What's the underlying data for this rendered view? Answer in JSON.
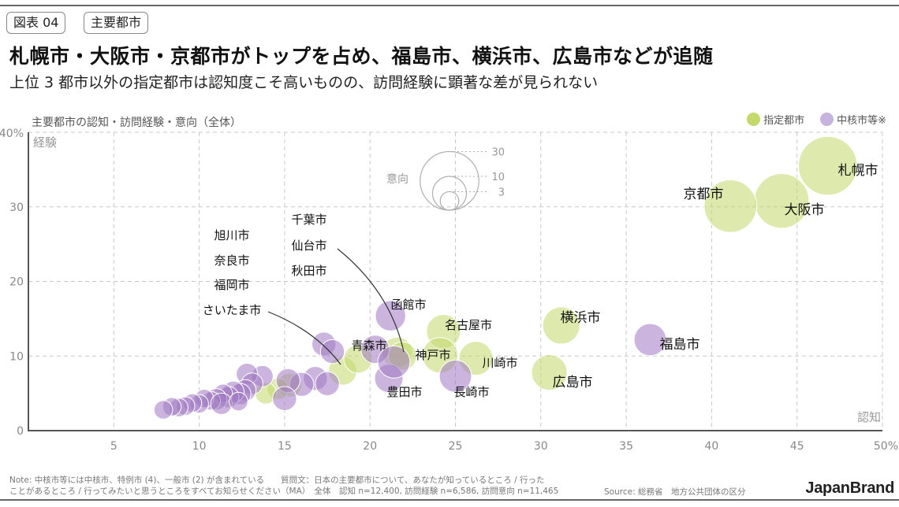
{
  "header": {
    "figure_tag": "図表 04",
    "category_tag": "主要都市",
    "title": "札幌市・大阪市・京都市がトップを占め、福島市、横浜市、広島市などが追随",
    "subtitle": "上位 3 都市以外の指定都市は認知度こそ高いものの、訪問経験に顕著な差が見られない"
  },
  "legend": [
    {
      "label": "指定都市",
      "color": "#c3d96a"
    },
    {
      "label": "中核市等※",
      "color": "#b79bd0"
    }
  ],
  "footer": {
    "note_line1": "Note: 中核市等には中核市、特例市 (4)、一般市 (2) が含まれている　　質問文：日本の主要都市について、あなたが知っているところ / 行った",
    "note_line2": "ことがあるところ / 行ってみたいと思うところをすべてお知らせください（MA）　全体　認知 n=12,400, 訪問経験 n=6,586, 訪問意向 n=11,465",
    "source": "Source: 総務省　地方公共団体の区分",
    "brand": "JapanBrand"
  },
  "chart_data": {
    "type": "scatter",
    "title": "主要都市の認知・訪問経験・意向（全体）",
    "xlabel": "認知",
    "ylabel": "経験",
    "size_label": "意向",
    "xlim": [
      0,
      50
    ],
    "ylim": [
      0,
      40
    ],
    "x_ticks": [
      5,
      10,
      15,
      20,
      25,
      30,
      35,
      40,
      45,
      50
    ],
    "x_tick_labels": [
      "5",
      "10",
      "15",
      "20",
      "25",
      "30",
      "35",
      "40",
      "45",
      "50%"
    ],
    "y_ticks": [
      0,
      10,
      20,
      30,
      40
    ],
    "y_tick_labels": [
      "0",
      "10",
      "20",
      "30",
      "40%"
    ],
    "size_legend": [
      30,
      10,
      3
    ],
    "grid": true,
    "legend_position": "top-right",
    "series": [
      {
        "name": "指定都市",
        "color": "#c3d96a",
        "points": [
          {
            "label": "札幌市",
            "x": 46.8,
            "y": 35.5,
            "size": 30
          },
          {
            "label": "大阪市",
            "x": 44.1,
            "y": 30.8,
            "size": 26
          },
          {
            "label": "京都市",
            "x": 41.1,
            "y": 30.1,
            "size": 24
          },
          {
            "label": "横浜市",
            "x": 31.2,
            "y": 14.1,
            "size": 12
          },
          {
            "label": "広島市",
            "x": 30.5,
            "y": 7.8,
            "size": 11
          },
          {
            "label": "名古屋市",
            "x": 24.3,
            "y": 13.3,
            "size": 10
          },
          {
            "label": "神戸市",
            "x": 24.1,
            "y": 10.1,
            "size": 11
          },
          {
            "label": "川崎市",
            "x": 26.2,
            "y": 9.7,
            "size": 10
          },
          {
            "label": "仙台市",
            "x": 21.6,
            "y": 10.5,
            "size": 8
          },
          {
            "label": "千葉市",
            "x": 21.9,
            "y": 10.0,
            "size": 7
          },
          {
            "label": "さいたま市",
            "x": 18.4,
            "y": 8.0,
            "size": 7
          },
          {
            "label": "福岡市",
            "x": 19.3,
            "y": 9.6,
            "size": 7
          },
          {
            "label": "",
            "x": 15.3,
            "y": 6.1,
            "size": 5
          },
          {
            "label": "",
            "x": 14.6,
            "y": 5.6,
            "size": 4
          },
          {
            "label": "",
            "x": 13.9,
            "y": 5.0,
            "size": 4
          }
        ]
      },
      {
        "name": "中核市等※",
        "color": "#b79bd0",
        "points": [
          {
            "label": "福島市",
            "x": 36.4,
            "y": 12.2,
            "size": 9
          },
          {
            "label": "函館市",
            "x": 21.2,
            "y": 15.4,
            "size": 8
          },
          {
            "label": "青森市",
            "x": 20.3,
            "y": 10.9,
            "size": 7
          },
          {
            "label": "豊田市",
            "x": 21.1,
            "y": 7.0,
            "size": 7
          },
          {
            "label": "長崎市",
            "x": 25.0,
            "y": 7.3,
            "size": 9
          },
          {
            "label": "",
            "x": 21.4,
            "y": 9.2,
            "size": 9
          },
          {
            "label": "旭川市",
            "x": 17.3,
            "y": 11.6,
            "size": 5
          },
          {
            "label": "奈良市",
            "x": 17.8,
            "y": 10.6,
            "size": 5
          },
          {
            "label": "秋田市",
            "x": 16.8,
            "y": 7.0,
            "size": 5
          },
          {
            "label": "",
            "x": 17.5,
            "y": 6.3,
            "size": 5
          },
          {
            "label": "",
            "x": 16.0,
            "y": 6.2,
            "size": 5
          },
          {
            "label": "",
            "x": 15.2,
            "y": 6.7,
            "size": 5
          },
          {
            "label": "",
            "x": 15.0,
            "y": 4.3,
            "size": 5
          },
          {
            "label": "",
            "x": 13.7,
            "y": 7.3,
            "size": 4
          },
          {
            "label": "",
            "x": 12.8,
            "y": 7.6,
            "size": 4
          },
          {
            "label": "",
            "x": 13.1,
            "y": 6.3,
            "size": 4
          },
          {
            "label": "",
            "x": 12.7,
            "y": 5.4,
            "size": 4
          },
          {
            "label": "",
            "x": 12.4,
            "y": 4.9,
            "size": 4
          },
          {
            "label": "",
            "x": 12.0,
            "y": 5.2,
            "size": 4
          },
          {
            "label": "",
            "x": 11.7,
            "y": 4.5,
            "size": 4
          },
          {
            "label": "",
            "x": 11.4,
            "y": 5.0,
            "size": 3
          },
          {
            "label": "",
            "x": 11.0,
            "y": 4.2,
            "size": 4
          },
          {
            "label": "",
            "x": 10.7,
            "y": 4.0,
            "size": 3
          },
          {
            "label": "",
            "x": 10.3,
            "y": 4.3,
            "size": 3
          },
          {
            "label": "",
            "x": 10.0,
            "y": 3.6,
            "size": 3
          },
          {
            "label": "",
            "x": 9.6,
            "y": 3.7,
            "size": 3
          },
          {
            "label": "",
            "x": 9.2,
            "y": 3.3,
            "size": 3
          },
          {
            "label": "",
            "x": 8.8,
            "y": 3.1,
            "size": 3
          },
          {
            "label": "",
            "x": 8.4,
            "y": 3.2,
            "size": 3
          },
          {
            "label": "",
            "x": 7.9,
            "y": 2.8,
            "size": 3
          },
          {
            "label": "",
            "x": 11.3,
            "y": 3.6,
            "size": 4
          },
          {
            "label": "",
            "x": 12.3,
            "y": 3.9,
            "size": 3
          }
        ]
      }
    ],
    "annotations": [
      {
        "text": "札幌市",
        "target": "札幌市"
      },
      {
        "text": "大阪市",
        "target": "大阪市"
      },
      {
        "text": "京都市",
        "target": "京都市"
      },
      {
        "text": "横浜市",
        "target": "横浜市"
      },
      {
        "text": "福島市",
        "target": "福島市"
      },
      {
        "text": "広島市",
        "target": "広島市"
      },
      {
        "text": "名古屋市",
        "target": "名古屋市"
      },
      {
        "text": "神戸市",
        "target": "神戸市"
      },
      {
        "text": "川崎市",
        "target": "川崎市"
      },
      {
        "text": "長崎市",
        "target": "長崎市"
      },
      {
        "text": "函館市",
        "target": "函館市"
      },
      {
        "text": "青森市",
        "target": "青森市"
      },
      {
        "text": "豊田市",
        "target": "豊田市"
      },
      {
        "text": "千葉市",
        "target": "千葉市"
      },
      {
        "text": "仙台市",
        "target": "仙台市"
      },
      {
        "text": "秋田市",
        "target": "秋田市"
      },
      {
        "text": "旭川市",
        "target": "旭川市"
      },
      {
        "text": "奈良市",
        "target": "奈良市"
      },
      {
        "text": "福岡市",
        "target": "福岡市"
      },
      {
        "text": "さいたま市",
        "target": "さいたま市"
      }
    ]
  }
}
